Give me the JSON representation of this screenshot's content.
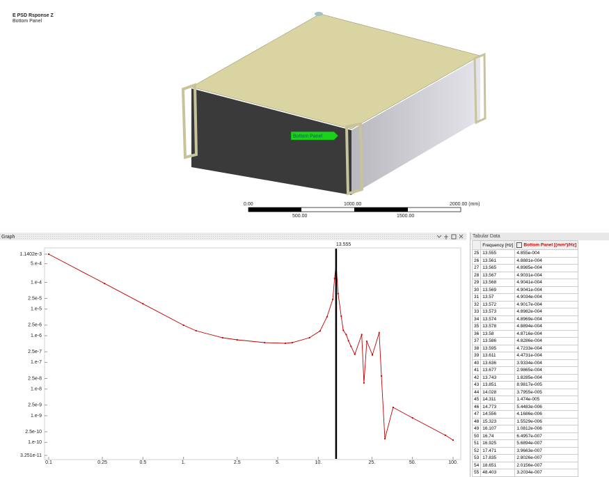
{
  "header": {
    "title": "E PSD Rsponse Z",
    "subtitle": "Bottom Panel"
  },
  "viewport": {
    "probe_label": "Bottom Panel",
    "scale_top": [
      "0.00",
      "1000.00",
      "2000.00 (mm)"
    ],
    "scale_bottom": [
      "500.00",
      "1500.00"
    ]
  },
  "graph_panel": {
    "title": "Graph"
  },
  "chart_data": {
    "type": "line",
    "log_x": true,
    "log_y": true,
    "color": "#c00000",
    "markers": true,
    "cursor": 13.555,
    "x": [
      0.1,
      0.26,
      0.5,
      1.0,
      1.24,
      1.95,
      2.5,
      4.0,
      5.7,
      6.4,
      8.6,
      10.3,
      11.6,
      12.8,
      13.2,
      13.555,
      14.028,
      14.773,
      15.323,
      16.107,
      16.74,
      17.471,
      18.651,
      21.0,
      21.8,
      22.9,
      25.2,
      28.3,
      29.4,
      31.2,
      35.9,
      50,
      87.7,
      100
    ],
    "values": [
      0.0011402,
      9e-05,
      1.57e-05,
      2.48e-06,
      1.53e-06,
      8.4e-07,
      7e-07,
      5.5e-07,
      5.2e-07,
      5.5e-07,
      8.4e-07,
      1.5e-06,
      5.1e-06,
      2.3e-05,
      0.00014,
      0.0004855,
      3.8e-05,
      5.4e-06,
      1.6e-06,
      1.1e-06,
      6.5e-07,
      4e-07,
      2e-07,
      1.1e-06,
      1.7e-08,
      6.2e-07,
      1.9e-07,
      1.3e-06,
      3.1e-08,
      1.37e-10,
      2.06e-09,
      8.3e-10,
      1.85e-10,
      1.22e-10
    ],
    "xlim": [
      0.1,
      100
    ],
    "ylim": [
      3.251e-11,
      0.0011402
    ],
    "xticks": [
      0.1,
      0.25,
      0.5,
      {
        "value": 1,
        "label": "1."
      },
      2.5,
      {
        "value": 5,
        "label": "5."
      },
      {
        "value": 10,
        "label": "10."
      },
      {
        "value": 25,
        "label": "25."
      },
      {
        "value": 50,
        "label": "50."
      },
      {
        "value": 100,
        "label": "100."
      }
    ],
    "yticks": [
      {
        "value": 0.0011402,
        "label": "1.1402e-3"
      },
      {
        "value": 0.0005,
        "label": "5.e-4"
      },
      {
        "value": 0.0001,
        "label": "1.e-4"
      },
      {
        "value": 2.5e-05,
        "label": "2.5e-5"
      },
      {
        "value": 1e-05,
        "label": "1.e-5"
      },
      {
        "value": 2.5e-06,
        "label": "2.5e-6"
      },
      {
        "value": 1e-06,
        "label": "1.e-6"
      },
      {
        "value": 2.5e-07,
        "label": "2.5e-7"
      },
      {
        "value": 1e-07,
        "label": "1.e-7"
      },
      {
        "value": 2.5e-08,
        "label": "2.5e-8"
      },
      {
        "value": 1e-08,
        "label": "1.e-8"
      },
      {
        "value": 2.5e-09,
        "label": "2.5e-9"
      },
      {
        "value": 1e-09,
        "label": "1.e-9"
      },
      {
        "value": 2.5e-10,
        "label": "2.5e-10"
      },
      {
        "value": 1e-10,
        "label": "1.e-10"
      },
      {
        "value": 3.251e-11,
        "label": "3.251e-11"
      }
    ]
  },
  "table": {
    "title": "Tabular Data",
    "columns": [
      "Frequency [Hz]",
      "Bottom Panel [(mm²)/Hz]"
    ],
    "rows": [
      [
        "25",
        "13.555",
        "4.855e-004"
      ],
      [
        "26",
        "13.561",
        "4.8881e-004"
      ],
      [
        "27",
        "13.565",
        "4.8985e-004"
      ],
      [
        "28",
        "13.567",
        "4.9031e-004"
      ],
      [
        "29",
        "13.568",
        "4.9041e-004"
      ],
      [
        "30",
        "13.569",
        "4.9041e-004"
      ],
      [
        "31",
        "13.57",
        "4.9034e-004"
      ],
      [
        "32",
        "13.572",
        "4.9017e-004"
      ],
      [
        "33",
        "13.573",
        "4.8982e-004"
      ],
      [
        "34",
        "13.574",
        "4.8969e-004"
      ],
      [
        "35",
        "13.578",
        "4.8894e-004"
      ],
      [
        "36",
        "13.58",
        "4.8716e-004"
      ],
      [
        "37",
        "13.586",
        "4.8286e-004"
      ],
      [
        "38",
        "13.595",
        "4.7233e-004"
      ],
      [
        "39",
        "13.611",
        "4.4731e-004"
      ],
      [
        "40",
        "13.636",
        "3.9334e-004"
      ],
      [
        "41",
        "13.677",
        "2.9865e-004"
      ],
      [
        "42",
        "13.743",
        "1.8285e-004"
      ],
      [
        "43",
        "13.851",
        "8.9817e-005"
      ],
      [
        "44",
        "14.028",
        "3.7955e-005"
      ],
      [
        "45",
        "14.311",
        "1.474e-005"
      ],
      [
        "46",
        "14.773",
        "5.4483e-006"
      ],
      [
        "47",
        "14.556",
        "4.1686e-006"
      ],
      [
        "48",
        "15.323",
        "1.5529e-006"
      ],
      [
        "49",
        "16.107",
        "1.0812e-006"
      ],
      [
        "50",
        "16.74",
        "6.4957e-007"
      ],
      [
        "51",
        "16.925",
        "5.6894e-007"
      ],
      [
        "52",
        "17.471",
        "3.9663e-007"
      ],
      [
        "53",
        "17.835",
        "2.8026e-007"
      ],
      [
        "54",
        "18.651",
        "2.0156e-007"
      ],
      [
        "55",
        "48.403",
        "3.2034e-007"
      ]
    ]
  }
}
